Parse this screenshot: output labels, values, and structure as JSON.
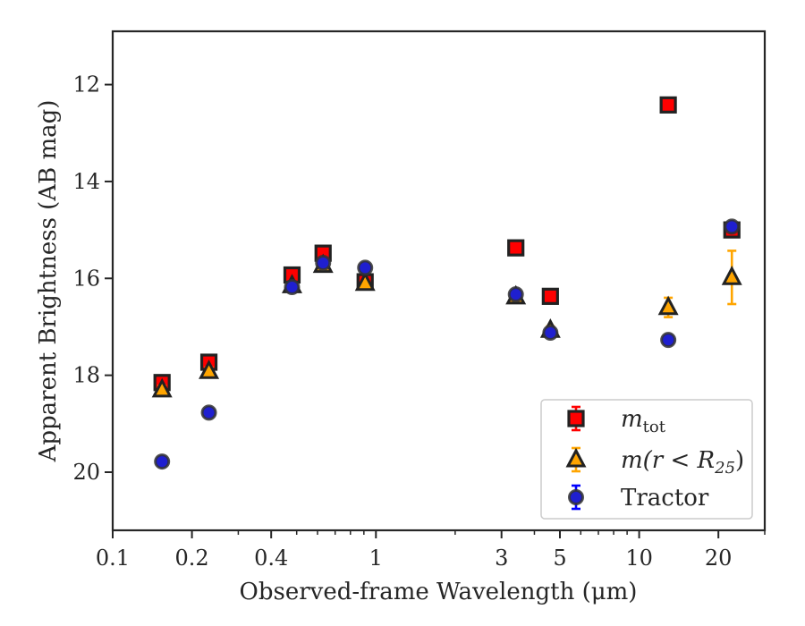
{
  "chart_data": {
    "type": "scatter",
    "xlabel": "Observed-frame Wavelength (μm)",
    "ylabel": "Apparent Brightness (AB mag)",
    "xscale": "log",
    "xlim": [
      0.1,
      30
    ],
    "ylim": [
      21.2,
      10.9
    ],
    "y_inverted": true,
    "grid": false,
    "legend_position": "lower right",
    "xticks": [
      {
        "value": 0.1,
        "label": "0.1"
      },
      {
        "value": 0.2,
        "label": "0.2"
      },
      {
        "value": 0.4,
        "label": "0.4"
      },
      {
        "value": 1,
        "label": "1"
      },
      {
        "value": 3,
        "label": "3"
      },
      {
        "value": 5,
        "label": "5"
      },
      {
        "value": 10,
        "label": "10"
      },
      {
        "value": 20,
        "label": "20"
      }
    ],
    "yticks": [
      {
        "value": 12,
        "label": "12"
      },
      {
        "value": 14,
        "label": "14"
      },
      {
        "value": 16,
        "label": "16"
      },
      {
        "value": 18,
        "label": "18"
      },
      {
        "value": 20,
        "label": "20"
      }
    ],
    "series": [
      {
        "name": "m_tot",
        "legend_main": "m",
        "legend_sub": "tot",
        "legend_rest": "",
        "marker": "square",
        "color": "#ff0000",
        "errcolor": "#ff0000",
        "points": [
          {
            "x": 0.154,
            "y": 18.15,
            "err": 0.08
          },
          {
            "x": 0.232,
            "y": 17.73,
            "err": 0.08
          },
          {
            "x": 0.48,
            "y": 15.93,
            "err": 0.05
          },
          {
            "x": 0.63,
            "y": 15.48,
            "err": 0.05
          },
          {
            "x": 0.91,
            "y": 16.07,
            "err": 0.05
          },
          {
            "x": 3.4,
            "y": 15.37,
            "err": 0.05
          },
          {
            "x": 4.6,
            "y": 16.37,
            "err": 0.05
          },
          {
            "x": 12.9,
            "y": 12.42,
            "err": 0.05
          },
          {
            "x": 22.5,
            "y": 15.0,
            "err": 0.05
          }
        ]
      },
      {
        "name": "m(r < R_25)",
        "legend_main": "m(r < R",
        "legend_sub": "25",
        "legend_rest": ")",
        "marker": "triangle",
        "color": "#ffa500",
        "errcolor": "#ffa500",
        "points": [
          {
            "x": 0.154,
            "y": 18.3,
            "err": 0.08
          },
          {
            "x": 0.232,
            "y": 17.92,
            "err": 0.08
          },
          {
            "x": 0.48,
            "y": 16.15,
            "err": 0.05
          },
          {
            "x": 0.63,
            "y": 15.73,
            "err": 0.05
          },
          {
            "x": 0.91,
            "y": 16.1,
            "err": 0.05
          },
          {
            "x": 3.4,
            "y": 16.38,
            "err": 0.05
          },
          {
            "x": 4.6,
            "y": 17.07,
            "err": 0.08
          },
          {
            "x": 12.9,
            "y": 16.6,
            "err": 0.2
          },
          {
            "x": 22.5,
            "y": 15.98,
            "err": 0.55
          }
        ]
      },
      {
        "name": "Tractor",
        "legend_main": "Tractor",
        "legend_sub": "",
        "legend_rest": "",
        "marker": "circle",
        "color": "#1f1fcf",
        "errcolor": "#0000ff",
        "points": [
          {
            "x": 0.154,
            "y": 19.78,
            "err": 0.08
          },
          {
            "x": 0.232,
            "y": 18.77,
            "err": 0.08
          },
          {
            "x": 0.48,
            "y": 16.18,
            "err": 0.05
          },
          {
            "x": 0.63,
            "y": 15.68,
            "err": 0.05
          },
          {
            "x": 0.91,
            "y": 15.78,
            "err": 0.05
          },
          {
            "x": 3.4,
            "y": 16.33,
            "err": 0.05
          },
          {
            "x": 4.6,
            "y": 17.12,
            "err": 0.05
          },
          {
            "x": 12.9,
            "y": 17.27,
            "err": 0.05
          },
          {
            "x": 22.5,
            "y": 14.93,
            "err": 0.05
          }
        ]
      }
    ]
  }
}
